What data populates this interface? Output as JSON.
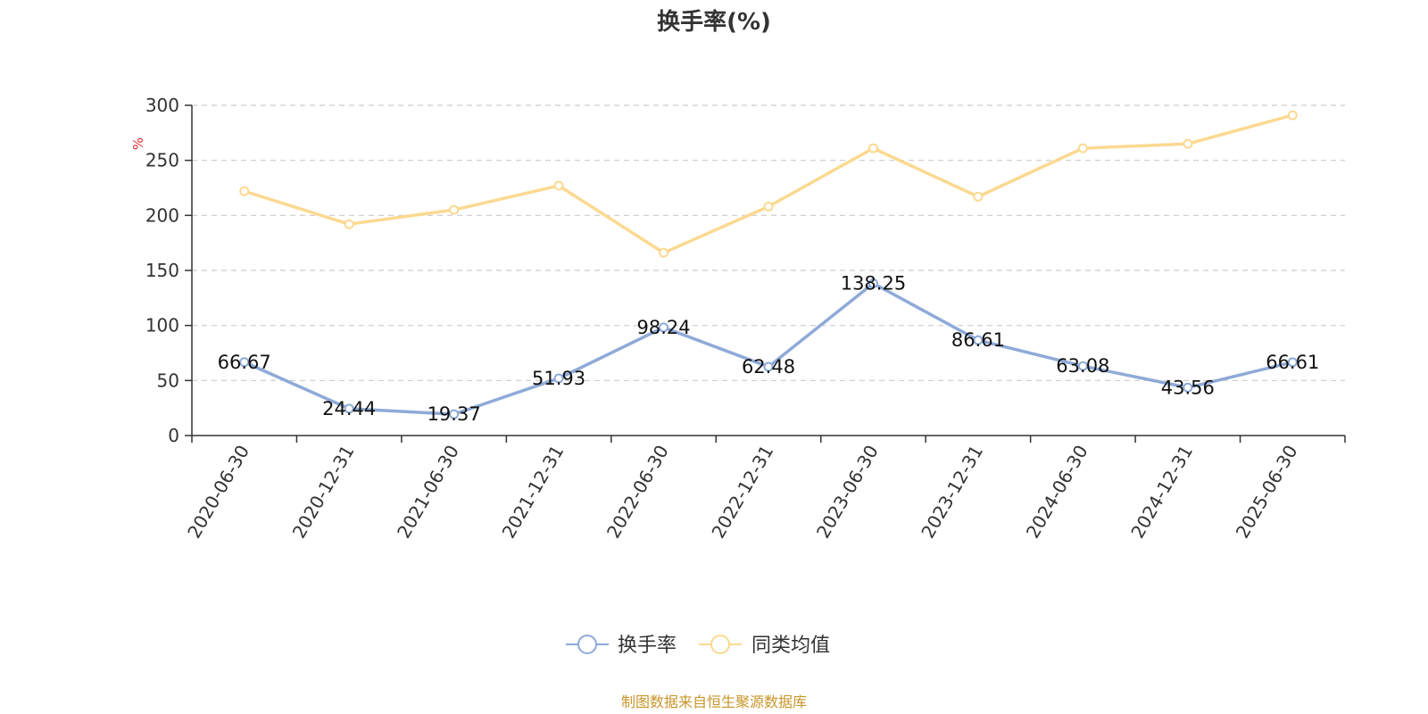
{
  "chart_data": {
    "type": "line",
    "title": "换手率(%)",
    "ylabel": "%",
    "ylim": [
      0,
      300
    ],
    "yticks": [
      0,
      50,
      100,
      150,
      200,
      250,
      300
    ],
    "grid": true,
    "legend_position": "bottom-center",
    "categories": [
      "2020-06-30",
      "2020-12-31",
      "2021-06-30",
      "2021-12-31",
      "2022-06-30",
      "2022-12-31",
      "2023-06-30",
      "2023-12-31",
      "2024-06-30",
      "2024-12-31",
      "2025-06-30"
    ],
    "series": [
      {
        "name": "换手率",
        "color": "#8eaad8",
        "values": [
          66.67,
          24.44,
          19.37,
          51.93,
          98.24,
          62.48,
          138.25,
          86.61,
          63.08,
          43.56,
          66.61
        ],
        "show_labels": true
      },
      {
        "name": "同类均值",
        "color": "#fbd990",
        "values": [
          222,
          192,
          205,
          227,
          166,
          208,
          261,
          217,
          261,
          265,
          291
        ],
        "show_labels": false
      }
    ]
  },
  "source_note": "制图数据来自恒生聚源数据库",
  "colors": {
    "axis": "#333333",
    "grid": "#cccccc",
    "unit": "#e03030",
    "source": "#c8952a"
  }
}
